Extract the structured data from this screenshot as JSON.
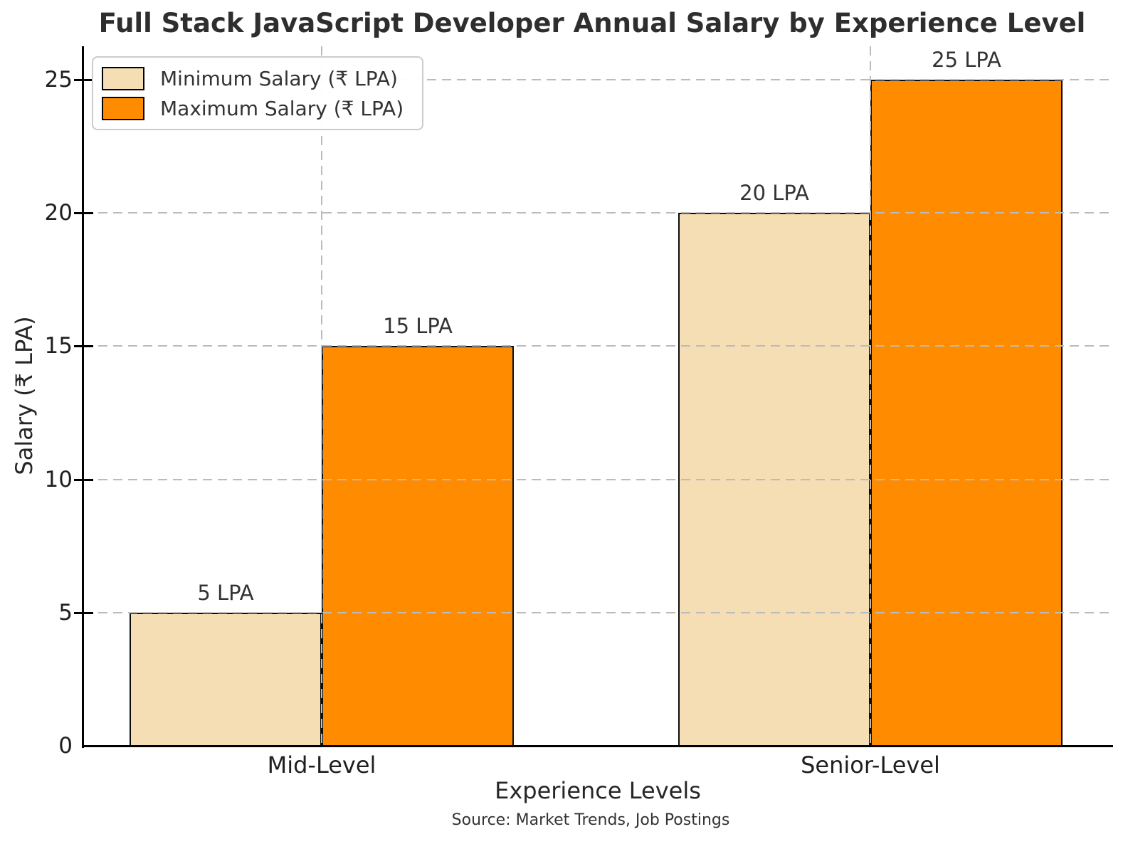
{
  "chart_data": {
    "type": "bar",
    "title": "Full Stack JavaScript Developer Annual Salary by Experience Level",
    "xlabel": "Experience Levels",
    "ylabel": "Salary (₹ LPA)",
    "source_note": "Source: Market Trends, Job Postings",
    "categories": [
      "Mid-Level",
      "Senior-Level"
    ],
    "series": [
      {
        "name": "Minimum Salary (₹ LPA)",
        "color": "#F5DEB3",
        "values": [
          5,
          20
        ],
        "labels": [
          "5 LPA",
          "20 LPA"
        ]
      },
      {
        "name": "Maximum Salary (₹ LPA)",
        "color": "#FF8C00",
        "values": [
          15,
          25
        ],
        "labels": [
          "15 LPA",
          "25 LPA"
        ]
      }
    ],
    "yticks": [
      "0",
      "5",
      "10",
      "15",
      "20",
      "25"
    ],
    "ylim": [
      0,
      26.25
    ],
    "grid": "dashed",
    "grid_color": "#bbbbbb",
    "grid_above_bars": true,
    "bar_edge_color": "#0d0d0d",
    "axis_color": "#000000",
    "text_color": "#333333",
    "legend_position": "upper-left"
  }
}
